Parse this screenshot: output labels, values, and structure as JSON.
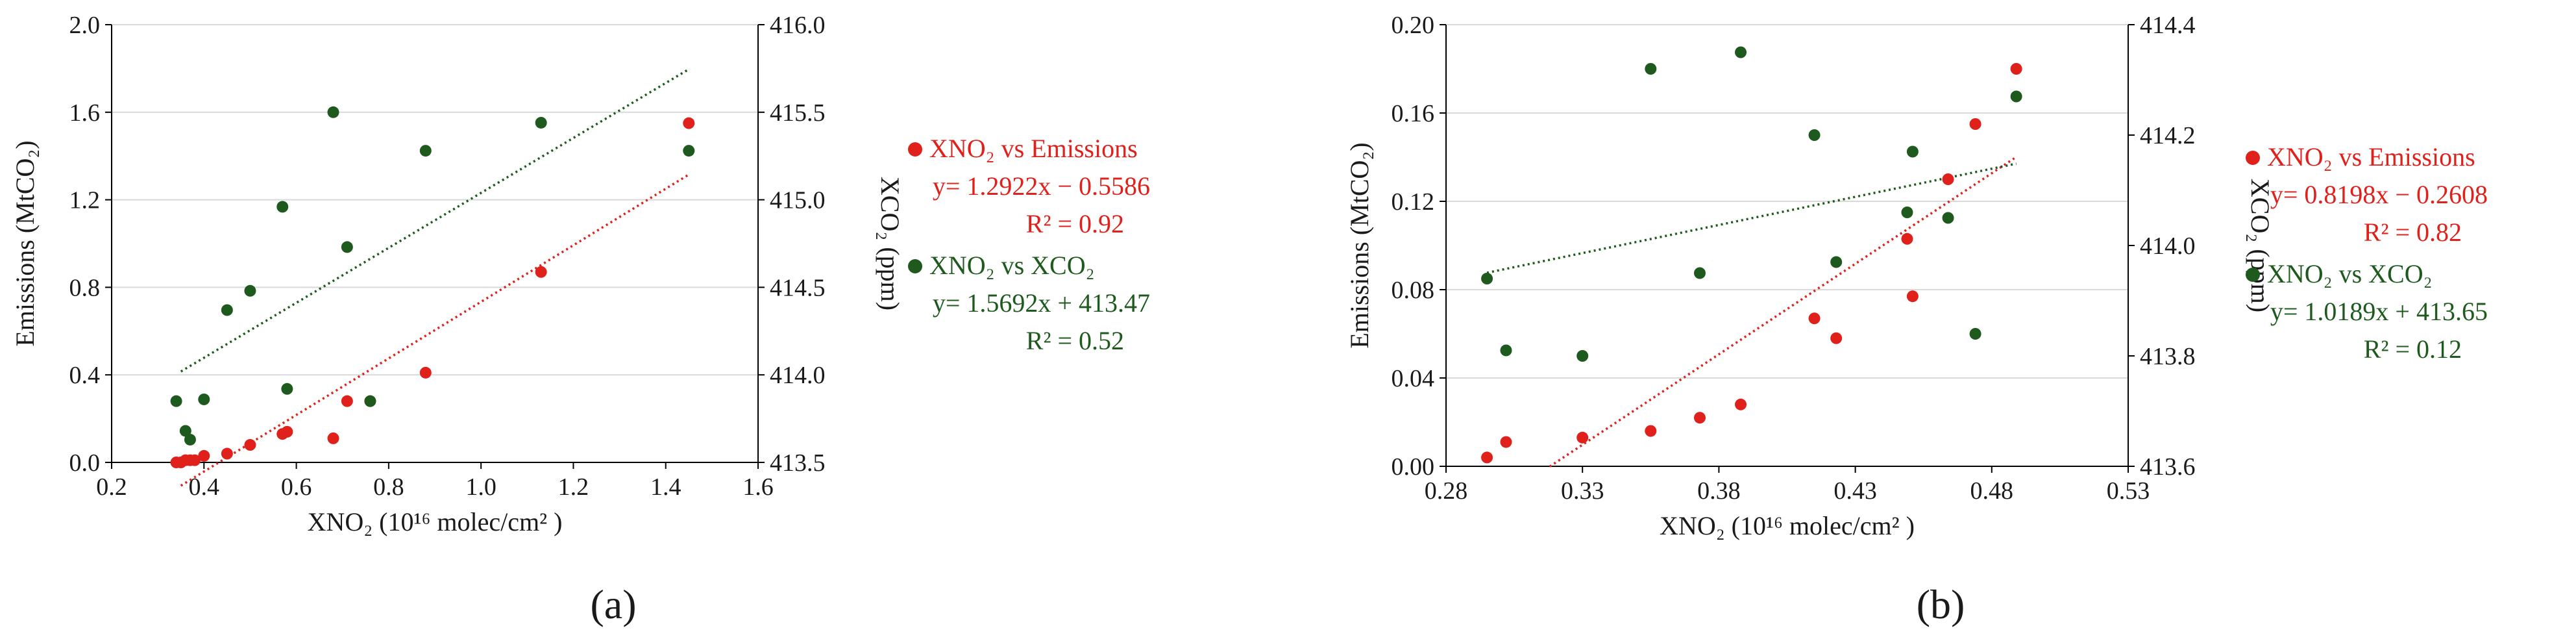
{
  "colors": {
    "emissions": "#e0201b",
    "xco2": "#1e5a1e",
    "axis": "#000000",
    "grid": "#d9d9d9",
    "legend_emissions_text": "#e0201b",
    "legend_xco2_text": "#1e5a1e"
  },
  "chart_data": [
    {
      "type": "scatter",
      "panel_label": "(a)",
      "xlabel": "XNO₂ (10¹⁶ molec/cm² )",
      "ylabel": "Emissions (MtCO₂)",
      "y2label": "XCO₂ (ppm)",
      "xlim": [
        0.2,
        1.6
      ],
      "ylim": [
        0,
        2.0
      ],
      "y2lim": [
        413.5,
        416.0
      ],
      "xticks": [
        "0.2",
        "0.4",
        "0.6",
        "0.8",
        "1.0",
        "1.2",
        "1.4",
        "1.6"
      ],
      "yticks": [
        "0.0",
        "0.4",
        "0.8",
        "1.2",
        "1.6",
        "2.0"
      ],
      "y2ticks": [
        "413.5",
        "414.0",
        "414.5",
        "415.0",
        "415.5",
        "416.0"
      ],
      "grid": "horizontal",
      "legend_position": "right",
      "series": [
        {
          "name": "XNO₂ vs Emissions",
          "color_key": "emissions",
          "axis": "left",
          "x": [
            0.34,
            0.35,
            0.36,
            0.37,
            0.38,
            0.4,
            0.45,
            0.5,
            0.57,
            0.58,
            0.68,
            0.71,
            0.76,
            0.88,
            1.13,
            1.45
          ],
          "y": [
            0.0,
            0.0,
            0.01,
            0.01,
            0.01,
            0.03,
            0.04,
            0.08,
            0.13,
            0.14,
            0.11,
            0.28,
            0.28,
            0.41,
            0.87,
            1.55
          ],
          "trend_label": "y= 1.2922x − 0.5586",
          "r2_label": "R² = 0.92",
          "trend": {
            "slope": 1.2922,
            "intercept": -0.5586,
            "x_range": [
              0.35,
              1.45
            ]
          }
        },
        {
          "name": "XNO₂ vs XCO₂",
          "color_key": "xco2",
          "axis": "right",
          "x": [
            0.34,
            0.36,
            0.37,
            0.4,
            0.45,
            0.5,
            0.57,
            0.58,
            0.68,
            0.71,
            0.76,
            0.88,
            1.13,
            1.45
          ],
          "y": [
            413.85,
            413.68,
            413.63,
            413.86,
            414.37,
            414.48,
            414.96,
            413.92,
            415.5,
            414.73,
            413.85,
            415.28,
            415.44,
            415.28
          ],
          "trend_label": "y= 1.5692x + 413.47",
          "r2_label": "R² = 0.52",
          "trend": {
            "slope": 1.5692,
            "intercept": 413.47,
            "x_range": [
              0.35,
              1.45
            ]
          }
        }
      ]
    },
    {
      "type": "scatter",
      "panel_label": "(b)",
      "xlabel": "XNO₂ (10¹⁶ molec/cm² )",
      "ylabel": "Emissions (MtCO₂)",
      "y2label": "XCO₂ (ppm)",
      "xlim": [
        0.28,
        0.53
      ],
      "ylim": [
        0,
        0.2
      ],
      "y2lim": [
        413.6,
        414.4
      ],
      "xticks": [
        "0.28",
        "0.33",
        "0.38",
        "0.43",
        "0.48",
        "0.53"
      ],
      "yticks": [
        "0.00",
        "0.04",
        "0.08",
        "0.12",
        "0.16",
        "0.20"
      ],
      "y2ticks": [
        "413.6",
        "413.8",
        "414.0",
        "414.2",
        "414.4"
      ],
      "grid": "horizontal",
      "legend_position": "right",
      "series": [
        {
          "name": "XNO₂ vs Emissions",
          "color_key": "emissions",
          "axis": "left",
          "x": [
            0.295,
            0.302,
            0.33,
            0.355,
            0.373,
            0.388,
            0.415,
            0.423,
            0.449,
            0.451,
            0.464,
            0.474,
            0.489
          ],
          "y": [
            0.004,
            0.011,
            0.013,
            0.016,
            0.022,
            0.028,
            0.067,
            0.058,
            0.103,
            0.077,
            0.13,
            0.155,
            0.18
          ],
          "trend_label": "y= 0.8198x − 0.2608",
          "r2_label": "R² = 0.82",
          "trend": {
            "slope": 0.8198,
            "intercept": -0.2608,
            "x_range": [
              0.318,
              0.489
            ]
          }
        },
        {
          "name": "XNO₂ vs XCO₂",
          "color_key": "xco2",
          "axis": "right",
          "x": [
            0.295,
            0.302,
            0.33,
            0.355,
            0.373,
            0.388,
            0.415,
            0.423,
            0.449,
            0.451,
            0.464,
            0.474,
            0.489
          ],
          "y": [
            413.94,
            413.81,
            413.8,
            414.32,
            413.95,
            414.35,
            414.2,
            413.97,
            414.06,
            414.17,
            414.05,
            413.84,
            414.27
          ],
          "trend_label": "y= 1.0189x + 413.65",
          "r2_label": "R² = 0.12",
          "trend": {
            "slope": 1.0189,
            "intercept": 413.65,
            "x_range": [
              0.295,
              0.489
            ]
          }
        }
      ]
    }
  ]
}
